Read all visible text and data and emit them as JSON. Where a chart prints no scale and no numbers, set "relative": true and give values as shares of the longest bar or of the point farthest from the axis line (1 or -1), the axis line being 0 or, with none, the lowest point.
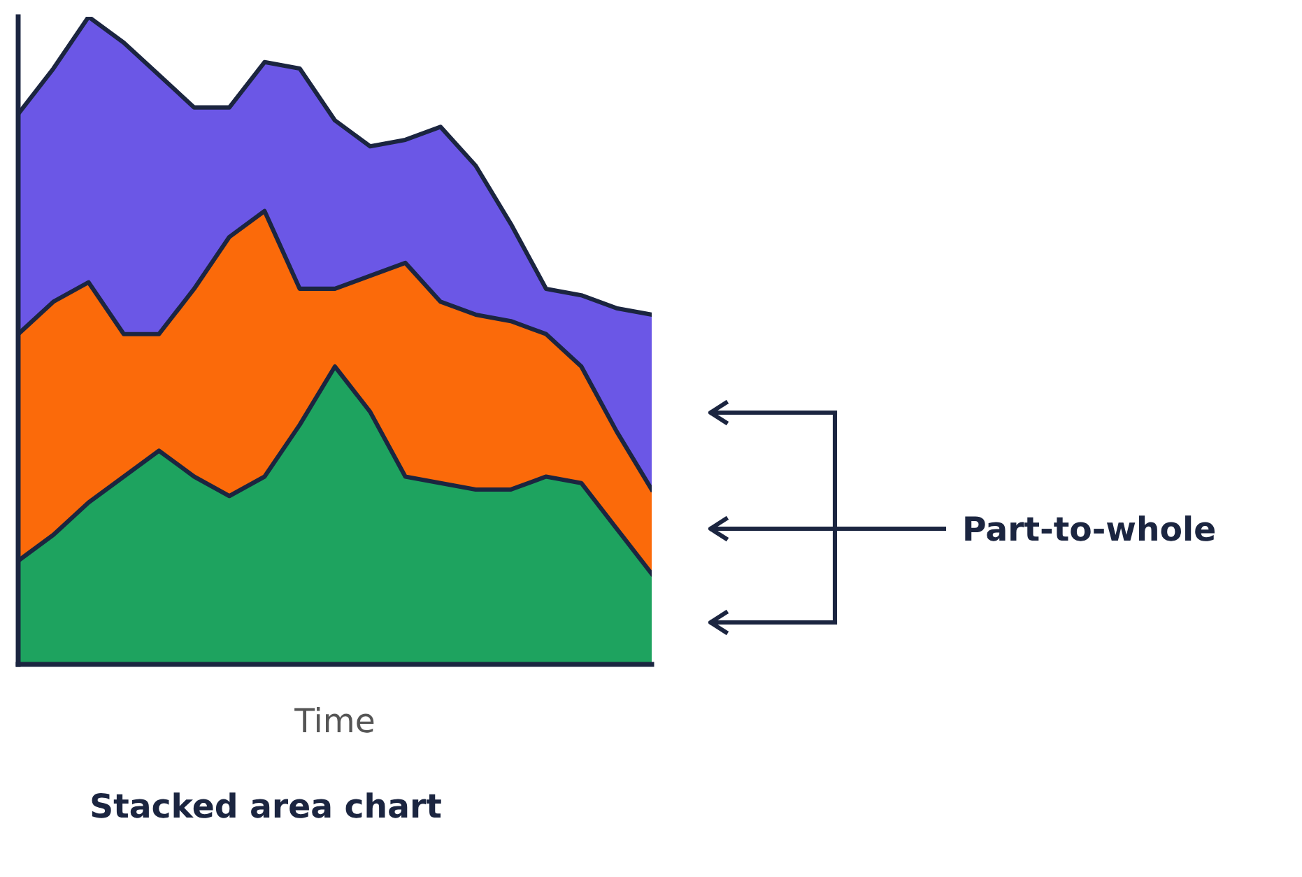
{
  "chart_data": {
    "type": "area",
    "title": "Stacked area chart",
    "xlabel": "Time",
    "relative": true,
    "stacked": true,
    "tick_labels": false,
    "grid": false,
    "legend": false,
    "categories": [
      null,
      null,
      null,
      null,
      null,
      null,
      null,
      null,
      null,
      null,
      null,
      null,
      null,
      null,
      null,
      null,
      null,
      null,
      null
    ],
    "series": [
      {
        "color": "#1ea35f",
        "values": [
          0.16,
          0.2,
          0.25,
          0.29,
          0.33,
          0.29,
          0.26,
          0.29,
          0.37,
          0.46,
          0.39,
          0.29,
          0.28,
          0.27,
          0.27,
          0.29,
          0.28,
          0.21,
          0.14
        ]
      },
      {
        "color": "#fb6a0a",
        "values": [
          0.35,
          0.36,
          0.34,
          0.22,
          0.18,
          0.29,
          0.4,
          0.41,
          0.21,
          0.12,
          0.21,
          0.33,
          0.28,
          0.27,
          0.26,
          0.22,
          0.18,
          0.15,
          0.13
        ]
      },
      {
        "color": "#6b57e6",
        "values": [
          0.34,
          0.36,
          0.41,
          0.45,
          0.4,
          0.28,
          0.2,
          0.23,
          0.34,
          0.26,
          0.2,
          0.19,
          0.27,
          0.23,
          0.15,
          0.07,
          0.11,
          0.19,
          0.27
        ]
      }
    ],
    "annotations": [
      "Part-to-whole"
    ]
  }
}
